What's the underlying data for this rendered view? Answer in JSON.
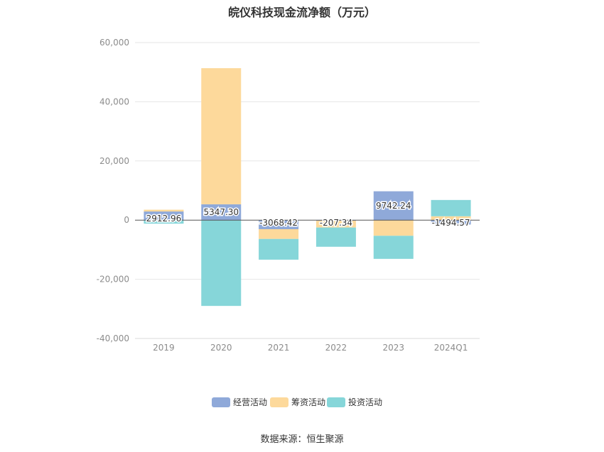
{
  "chart_data": {
    "type": "bar",
    "stacked": true,
    "title": "皖仪科技现金流净额（万元）",
    "categories": [
      "2019",
      "2020",
      "2021",
      "2022",
      "2023",
      "2024Q1"
    ],
    "series": [
      {
        "name": "经营活动",
        "color": "#8fa9d9",
        "values": [
          2912.96,
          5347.3,
          -3068.42,
          -207.34,
          9742.24,
          -1494.57
        ]
      },
      {
        "name": "筹资活动",
        "color": "#fdd99b",
        "values": [
          600,
          46000,
          -3300,
          -2300,
          -5300,
          1300
        ]
      },
      {
        "name": "投资活动",
        "color": "#86d6d9",
        "values": [
          -1200,
          -29000,
          -7000,
          -6500,
          -7800,
          5500
        ]
      }
    ],
    "data_labels": [
      "2912.96",
      "5347.30",
      "-3068.42",
      "-207.34",
      "9742.24",
      "-1494.57"
    ],
    "ylim": [
      -40000,
      60000
    ],
    "yticks": [
      60000,
      40000,
      20000,
      0,
      -20000,
      -40000
    ],
    "ytick_labels": [
      "60,000",
      "40,000",
      "20,000",
      "0",
      "-20,000",
      "-40,000"
    ],
    "grid": true,
    "legend_position": "bottom"
  },
  "source_note": "数据来源：恒生聚源"
}
